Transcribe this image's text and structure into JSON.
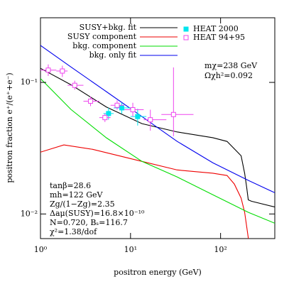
{
  "chart_data": {
    "type": "line",
    "x_label": "positron energy  (GeV)",
    "y_label": "positron fraction e⁺/(e⁺+e⁻)",
    "log_x": true,
    "log_y": true,
    "xlim": [
      1,
      400
    ],
    "ylim": [
      0.0065,
      0.31
    ],
    "xticks": [
      {
        "value": 1,
        "label": "10⁰"
      },
      {
        "value": 10,
        "label": "10¹"
      },
      {
        "value": 100,
        "label": "10²"
      }
    ],
    "yticks": [
      {
        "value": 0.01,
        "label": "10⁻²"
      },
      {
        "value": 0.1,
        "label": "10⁻¹"
      }
    ],
    "series": [
      {
        "name": "SUSY+bkg. fit",
        "color": "#000000",
        "style": "line",
        "x": [
          1,
          2.18,
          5.4,
          13.4,
          33,
          82,
          118,
          169,
          185,
          195,
          203,
          220,
          400
        ],
        "values": [
          0.128,
          0.096,
          0.065,
          0.0486,
          0.042,
          0.038,
          0.0356,
          0.0277,
          0.0204,
          0.0159,
          0.0128,
          0.0125,
          0.0113
        ]
      },
      {
        "name": "SUSY component",
        "color": "#ee0000",
        "style": "line",
        "x": [
          1,
          1.82,
          3.8,
          13.4,
          33,
          82,
          118,
          142,
          169,
          185,
          203,
          215
        ],
        "values": [
          0.0295,
          0.0335,
          0.031,
          0.0251,
          0.0216,
          0.0204,
          0.0196,
          0.0169,
          0.0132,
          0.0103,
          0.0066,
          0.005
        ]
      },
      {
        "name": "bkg. component",
        "color": "#00dd00",
        "style": "line",
        "x": [
          1,
          2.18,
          5.4,
          13.4,
          33,
          82,
          203,
          400
        ],
        "values": [
          0.107,
          0.0623,
          0.0379,
          0.0251,
          0.0191,
          0.014,
          0.0103,
          0.0085
        ]
      },
      {
        "name": "bkg. only fit",
        "color": "#0000ee",
        "style": "line",
        "x": [
          1,
          2.18,
          5.4,
          13.4,
          33,
          82,
          203,
          400
        ],
        "values": [
          0.191,
          0.131,
          0.085,
          0.055,
          0.0356,
          0.0245,
          0.018,
          0.0145
        ]
      },
      {
        "name": "HEAT 2000",
        "color": "#00e5ee",
        "style": "points",
        "marker": "filled-square",
        "x": [
          5.7,
          8,
          12
        ],
        "values": [
          0.058,
          0.064,
          0.055
        ],
        "x_lo": [
          5,
          6.5,
          10
        ],
        "x_hi": [
          6.5,
          10,
          15
        ],
        "y_lo": [
          0.052,
          0.058,
          0.047
        ],
        "y_hi": [
          0.064,
          0.07,
          0.063
        ]
      },
      {
        "name": "HEAT 94+95",
        "color": "#ee44ee",
        "style": "points",
        "marker": "open-square",
        "x": [
          1.22,
          1.75,
          2.4,
          3.6,
          5.2,
          7.1,
          10.6,
          16.6,
          30
        ],
        "values": [
          0.124,
          0.122,
          0.095,
          0.072,
          0.054,
          0.067,
          0.062,
          0.052,
          0.057
        ],
        "x_lo": [
          1.0,
          1.5,
          2.0,
          3.0,
          4.5,
          6.0,
          8.5,
          14,
          22
        ],
        "x_hi": [
          1.5,
          2.0,
          3.0,
          4.5,
          6.0,
          8.5,
          14,
          25,
          50
        ],
        "y_lo": [
          0.112,
          0.11,
          0.088,
          0.066,
          0.05,
          0.062,
          0.055,
          0.043,
          0.039
        ],
        "y_hi": [
          0.137,
          0.134,
          0.103,
          0.078,
          0.058,
          0.073,
          0.07,
          0.062,
          0.13
        ]
      }
    ],
    "annotations": [
      "mχ=238 GeV",
      "Ωχh²=0.092"
    ],
    "parameters": [
      "tanβ=28.6",
      "mh=122 GeV",
      "Zg/(1−Zg)=2.35",
      "Δaμ(SUSY)=16.8×10⁻¹⁰",
      "N=0.720, Bₛ=116.7",
      "χ²=1.38/dof"
    ]
  }
}
